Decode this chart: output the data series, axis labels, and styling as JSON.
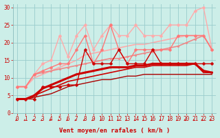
{
  "background_color": "#cceee8",
  "grid_color": "#99cccc",
  "xlabel": "Vent moyen/en rafales ( km/h )",
  "xlim": [
    -0.5,
    23.5
  ],
  "ylim": [
    0,
    31
  ],
  "yticks": [
    0,
    5,
    10,
    15,
    20,
    25,
    30
  ],
  "xticks": [
    0,
    1,
    2,
    3,
    4,
    5,
    6,
    7,
    8,
    9,
    10,
    11,
    12,
    13,
    14,
    15,
    16,
    17,
    18,
    19,
    20,
    21,
    22,
    23
  ],
  "lines": [
    {
      "x": [
        0,
        1,
        2,
        3,
        4,
        5,
        6,
        7,
        8,
        9,
        10,
        11,
        12,
        13,
        14,
        15,
        16,
        17,
        18,
        19,
        20,
        21,
        22,
        23
      ],
      "y": [
        4,
        4,
        4.5,
        5,
        5.5,
        6.5,
        7.5,
        8,
        8.5,
        9,
        9.5,
        9.5,
        10,
        10.5,
        10.5,
        11,
        11,
        11,
        11,
        11,
        11,
        11,
        11,
        11
      ],
      "color": "#aa0000",
      "lw": 1.0,
      "marker": null,
      "ms": 0,
      "zorder": 2
    },
    {
      "x": [
        0,
        1,
        2,
        3,
        4,
        5,
        6,
        7,
        8,
        9,
        10,
        11,
        12,
        13,
        14,
        15,
        16,
        17,
        18,
        19,
        20,
        21,
        22,
        23
      ],
      "y": [
        4,
        4,
        5,
        6,
        7,
        8,
        9,
        9.5,
        10,
        10.5,
        11,
        11.5,
        12,
        12.5,
        13,
        13,
        13.5,
        13.5,
        13.5,
        13.5,
        13.5,
        14,
        11.5,
        11.5
      ],
      "color": "#cc0000",
      "lw": 1.2,
      "marker": null,
      "ms": 0,
      "zorder": 3
    },
    {
      "x": [
        0,
        1,
        2,
        3,
        4,
        5,
        6,
        7,
        8,
        9,
        10,
        11,
        12,
        13,
        14,
        15,
        16,
        17,
        18,
        19,
        20,
        21,
        22,
        23
      ],
      "y": [
        4,
        4,
        5,
        7,
        8,
        9,
        10,
        11,
        11.5,
        12,
        12.5,
        13,
        13,
        13,
        13.5,
        13.5,
        14,
        14,
        14,
        14,
        14,
        14,
        12,
        11.5
      ],
      "color": "#cc0000",
      "lw": 2.2,
      "marker": "s",
      "ms": 2.0,
      "zorder": 5
    },
    {
      "x": [
        0,
        1,
        2,
        3,
        4,
        5,
        6,
        7,
        8,
        9,
        10,
        11,
        12,
        13,
        14,
        15,
        16,
        17,
        18,
        19,
        20,
        21,
        22,
        23
      ],
      "y": [
        4,
        4,
        4,
        7.5,
        7.5,
        7.5,
        8,
        8,
        18,
        14,
        14,
        14,
        18,
        14,
        14,
        14,
        18,
        14,
        14,
        14,
        14,
        14,
        14,
        14
      ],
      "color": "#cc0000",
      "lw": 1.0,
      "marker": "D",
      "ms": 2.5,
      "zorder": 4
    },
    {
      "x": [
        0,
        1,
        2,
        3,
        4,
        5,
        6,
        7,
        8,
        9,
        10,
        11,
        12,
        13,
        14,
        15,
        16,
        17,
        18,
        19,
        20,
        21,
        22,
        23
      ],
      "y": [
        7.5,
        7.5,
        10,
        11,
        12,
        13,
        14,
        15,
        16.5,
        17,
        17.5,
        18,
        18.5,
        19,
        19.5,
        19.5,
        20,
        20.5,
        21,
        21.5,
        22,
        22,
        22,
        18
      ],
      "color": "#ffaaaa",
      "lw": 1.2,
      "marker": null,
      "ms": 0,
      "zorder": 1
    },
    {
      "x": [
        0,
        1,
        2,
        3,
        4,
        5,
        6,
        7,
        8,
        9,
        10,
        11,
        12,
        13,
        14,
        15,
        16,
        17,
        18,
        19,
        20,
        21,
        22,
        23
      ],
      "y": [
        7.5,
        7.5,
        11,
        11.5,
        12,
        12.5,
        13,
        13.5,
        14,
        14.5,
        15,
        15.5,
        15.5,
        16,
        16.5,
        17,
        17.5,
        18,
        18.5,
        19,
        20,
        21,
        22,
        18
      ],
      "color": "#ee8888",
      "lw": 1.2,
      "marker": "o",
      "ms": 2.0,
      "zorder": 2
    },
    {
      "x": [
        0,
        1,
        2,
        3,
        4,
        5,
        6,
        7,
        8,
        9,
        10,
        11,
        12,
        13,
        14,
        15,
        16,
        17,
        18,
        19,
        20,
        21,
        22,
        23
      ],
      "y": [
        7.5,
        7.5,
        11,
        14,
        15,
        22,
        16,
        22,
        25,
        18,
        22,
        25,
        22,
        22,
        25,
        22,
        22,
        22,
        25,
        25,
        25,
        29,
        30,
        18
      ],
      "color": "#ffaaaa",
      "lw": 1.0,
      "marker": "D",
      "ms": 2.5,
      "zorder": 3
    },
    {
      "x": [
        0,
        1,
        2,
        3,
        4,
        5,
        6,
        7,
        8,
        9,
        10,
        11,
        12,
        13,
        14,
        15,
        16,
        17,
        18,
        19,
        20,
        21,
        22,
        23
      ],
      "y": [
        7.5,
        7.5,
        11,
        12,
        13,
        14,
        14,
        18,
        22,
        14,
        18,
        25,
        18,
        14,
        18,
        18,
        18,
        18,
        18,
        22,
        22,
        22,
        22,
        18
      ],
      "color": "#ff7777",
      "lw": 1.0,
      "marker": "D",
      "ms": 2.5,
      "zorder": 3
    }
  ],
  "tick_fontsize": 5.5,
  "label_fontsize": 6.5
}
